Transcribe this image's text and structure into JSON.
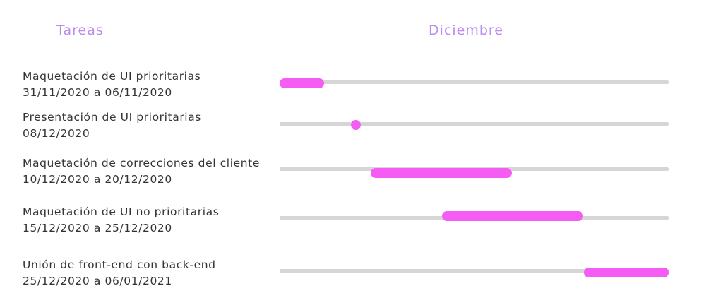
{
  "header": {
    "tasks_title": "Tareas",
    "month_title": "Diciembre"
  },
  "colors": {
    "title": "#bb8cf0",
    "bar": "#f45cf4",
    "track": "#d6d6d6",
    "text": "#333333"
  },
  "tasks": [
    {
      "name": "Maquetación de UI prioritarias",
      "dates": "31/11/2020 a 06/11/2020"
    },
    {
      "name": "Presentación de UI prioritarias",
      "dates": "08/12/2020"
    },
    {
      "name": "Maquetación de correcciones del cliente",
      "dates": "10/12/2020 a 20/12/2020"
    },
    {
      "name": "Maquetación de UI no prioritarias",
      "dates": "15/12/2020 a 25/12/2020"
    },
    {
      "name": "Unión de front-end con back-end",
      "dates": "25/12/2020 a 06/01/2021"
    }
  ]
}
